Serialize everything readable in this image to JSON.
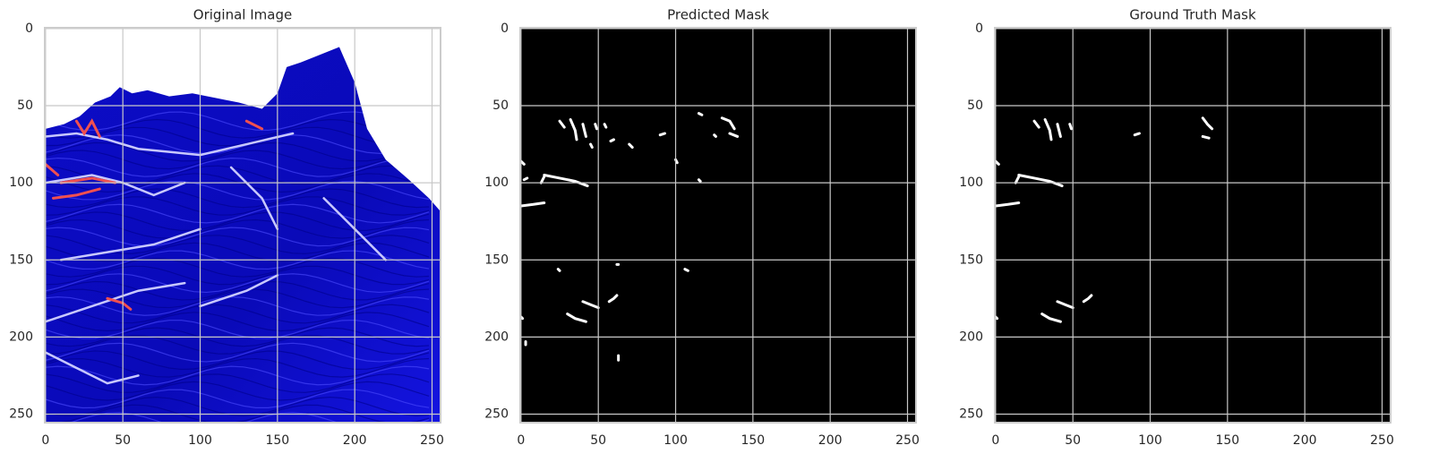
{
  "chart_data": [
    {
      "type": "image",
      "title": "Original Image",
      "xlim": [
        -0.5,
        255.5
      ],
      "ylim": [
        255.5,
        -0.5
      ],
      "xticks": [
        0,
        50,
        100,
        150,
        200,
        250
      ],
      "yticks": [
        0,
        50,
        100,
        150,
        200,
        250
      ],
      "grid": true
    },
    {
      "type": "image",
      "title": "Predicted Mask",
      "xlim": [
        -0.5,
        255.5
      ],
      "ylim": [
        255.5,
        -0.5
      ],
      "xticks": [
        0,
        50,
        100,
        150,
        200,
        250
      ],
      "yticks": [
        0,
        50,
        100,
        150,
        200,
        250
      ],
      "grid": true
    },
    {
      "type": "image",
      "title": "Ground Truth Mask",
      "xlim": [
        -0.5,
        255.5
      ],
      "ylim": [
        255.5,
        -0.5
      ],
      "xticks": [
        0,
        50,
        100,
        150,
        200,
        250
      ],
      "yticks": [
        0,
        50,
        100,
        150,
        200,
        250
      ],
      "grid": true
    }
  ]
}
